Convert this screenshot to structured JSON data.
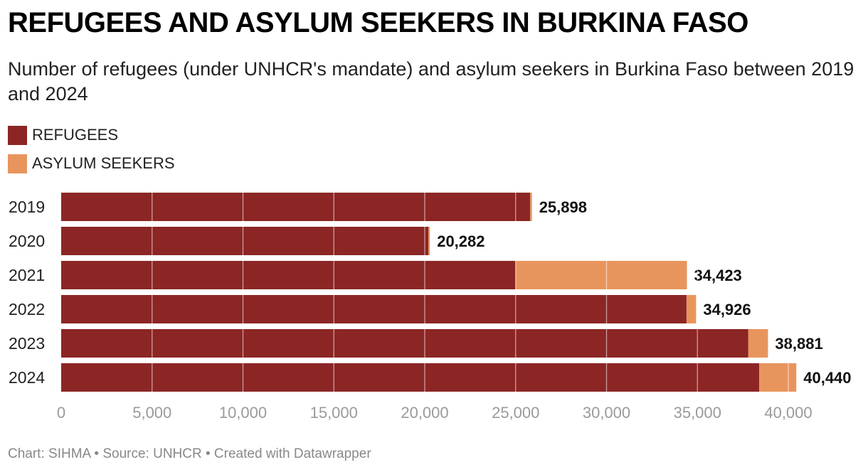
{
  "title": "REFUGEES AND ASYLUM SEEKERS IN BURKINA FASO",
  "subtitle": "Number of refugees (under UNHCR's mandate) and asylum seekers in Burkina Faso between 2019 and 2024",
  "footer": "Chart: SIHMA • Source: UNHCR • Created with Datawrapper",
  "colors": {
    "refugees": "#8b2625",
    "asylum_seekers": "#e8955d",
    "grid": "#ffffff"
  },
  "chart_data": {
    "type": "bar",
    "orientation": "horizontal",
    "stacked": true,
    "categories": [
      "2019",
      "2020",
      "2021",
      "2022",
      "2023",
      "2024"
    ],
    "series": [
      {
        "name": "REFUGEES",
        "values": [
          25800,
          20200,
          25000,
          34400,
          37800,
          38400
        ]
      },
      {
        "name": "ASYLUM SEEKERS",
        "values": [
          98,
          82,
          9423,
          526,
          1081,
          2040
        ]
      }
    ],
    "totals": [
      "25,898",
      "20,282",
      "34,423",
      "34,926",
      "38,881",
      "40,440"
    ],
    "xlim": [
      0,
      42000
    ],
    "xticks": [
      0,
      5000,
      10000,
      15000,
      20000,
      25000,
      30000,
      35000,
      40000
    ],
    "xtick_labels": [
      "0",
      "5,000",
      "10,000",
      "15,000",
      "20,000",
      "25,000",
      "30,000",
      "35,000",
      "40,000"
    ],
    "grid": true,
    "legend_position": "top-left"
  }
}
